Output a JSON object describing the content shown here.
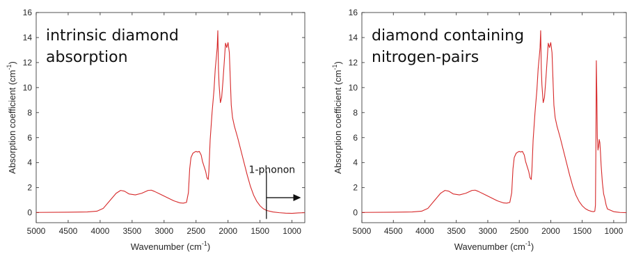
{
  "chart_data": [
    {
      "type": "line",
      "title": "",
      "xlabel": "Wavenumber (cm",
      "xlabel_sup": "-1",
      "xlabel_close": ")",
      "ylabel": "Absorption coefficient (cm",
      "ylabel_sup": "-1",
      "ylabel_close": ")",
      "xlim": [
        5000,
        800
      ],
      "x_reversed": true,
      "ylim": [
        -0.8,
        16
      ],
      "xticks": [
        5000,
        4500,
        4000,
        3500,
        3000,
        2500,
        2000,
        1500,
        1000
      ],
      "yticks": [
        0,
        2,
        4,
        6,
        8,
        10,
        12,
        14,
        16
      ],
      "grid": false,
      "line_color": "#d62728",
      "annotation_lines": [
        "intrinsic diamond",
        "absorption"
      ],
      "marker": {
        "text": "1-phonon",
        "x": 1400,
        "arrow_from": 1400,
        "arrow_to": 860,
        "arrow_y": 1.2,
        "line_top": 3.3,
        "line_bottom": -0.5
      },
      "series": [
        {
          "x": [
            5000,
            4500,
            4200,
            4050,
            3950,
            3850,
            3750,
            3680,
            3620,
            3550,
            3450,
            3350,
            3250,
            3200,
            3150,
            3050,
            2950,
            2850,
            2750,
            2700,
            2650,
            2620,
            2600,
            2580,
            2550,
            2520,
            2500,
            2480,
            2450,
            2420,
            2400,
            2350,
            2330,
            2310,
            2300,
            2280,
            2250,
            2220,
            2200,
            2180,
            2170,
            2160,
            2150,
            2140,
            2120,
            2100,
            2080,
            2060,
            2040,
            2020,
            2000,
            1980,
            1960,
            1950,
            1930,
            1900,
            1850,
            1800,
            1750,
            1700,
            1650,
            1600,
            1550,
            1500,
            1450,
            1400,
            1300,
            1200,
            1100,
            1000,
            900,
            800
          ],
          "y": [
            0.02,
            0.04,
            0.06,
            0.12,
            0.35,
            0.95,
            1.55,
            1.78,
            1.72,
            1.5,
            1.42,
            1.55,
            1.78,
            1.8,
            1.7,
            1.45,
            1.2,
            0.95,
            0.78,
            0.76,
            0.82,
            1.6,
            3.5,
            4.4,
            4.75,
            4.85,
            4.9,
            4.85,
            4.9,
            4.6,
            4.1,
            3.3,
            2.8,
            2.65,
            3.3,
            5.8,
            8.0,
            9.8,
            11.5,
            12.6,
            13.2,
            14.55,
            11.5,
            10.2,
            8.8,
            9.2,
            10.5,
            12.0,
            13.55,
            13.2,
            13.6,
            12.8,
            10.0,
            8.6,
            7.6,
            6.9,
            6.0,
            5.0,
            4.0,
            3.0,
            2.1,
            1.4,
            0.9,
            0.55,
            0.32,
            0.18,
            0.06,
            0.0,
            -0.04,
            -0.05,
            -0.02,
            0.0
          ]
        }
      ]
    },
    {
      "type": "line",
      "title": "",
      "xlabel": "Wavenumber (cm",
      "xlabel_sup": "-1",
      "xlabel_close": ")",
      "ylabel": "Absorption coefficient (cm",
      "ylabel_sup": "-1",
      "ylabel_close": ")",
      "xlim": [
        5000,
        800
      ],
      "x_reversed": true,
      "ylim": [
        -0.8,
        16
      ],
      "xticks": [
        5000,
        4500,
        4000,
        3500,
        3000,
        2500,
        2000,
        1500,
        1000
      ],
      "yticks": [
        0,
        2,
        4,
        6,
        8,
        10,
        12,
        14,
        16
      ],
      "grid": false,
      "line_color": "#d62728",
      "annotation_lines": [
        "diamond containing",
        "nitrogen-pairs"
      ],
      "series": [
        {
          "x": [
            5000,
            4500,
            4200,
            4050,
            3950,
            3850,
            3750,
            3680,
            3620,
            3550,
            3450,
            3350,
            3250,
            3200,
            3150,
            3050,
            2950,
            2850,
            2750,
            2700,
            2650,
            2620,
            2600,
            2580,
            2550,
            2520,
            2500,
            2480,
            2450,
            2420,
            2400,
            2350,
            2330,
            2310,
            2300,
            2280,
            2250,
            2220,
            2200,
            2180,
            2170,
            2160,
            2150,
            2140,
            2120,
            2100,
            2080,
            2060,
            2040,
            2020,
            2000,
            1980,
            1960,
            1950,
            1930,
            1900,
            1850,
            1800,
            1750,
            1700,
            1650,
            1600,
            1550,
            1500,
            1450,
            1400,
            1350,
            1320,
            1300,
            1290,
            1282,
            1276,
            1268,
            1260,
            1250,
            1240,
            1230,
            1220,
            1210,
            1200,
            1180,
            1160,
            1140,
            1120,
            1100,
            1000,
            900,
            800
          ],
          "y": [
            0.02,
            0.04,
            0.06,
            0.12,
            0.35,
            0.95,
            1.55,
            1.78,
            1.72,
            1.5,
            1.42,
            1.55,
            1.78,
            1.8,
            1.7,
            1.45,
            1.2,
            0.95,
            0.78,
            0.76,
            0.82,
            1.6,
            3.5,
            4.4,
            4.75,
            4.85,
            4.9,
            4.85,
            4.9,
            4.6,
            4.1,
            3.3,
            2.8,
            2.65,
            3.3,
            5.8,
            8.0,
            9.8,
            11.5,
            12.6,
            13.2,
            14.55,
            11.5,
            10.2,
            8.8,
            9.2,
            10.5,
            12.0,
            13.55,
            13.2,
            13.6,
            12.8,
            10.0,
            8.6,
            7.6,
            6.9,
            6.0,
            5.0,
            4.0,
            3.0,
            2.1,
            1.4,
            0.9,
            0.55,
            0.32,
            0.18,
            0.1,
            0.08,
            0.12,
            0.6,
            6.0,
            12.15,
            9.5,
            6.0,
            5.0,
            5.3,
            5.85,
            5.6,
            4.8,
            3.8,
            2.4,
            1.5,
            1.1,
            0.6,
            0.3,
            0.08,
            0.02,
            0.0
          ]
        }
      ]
    }
  ]
}
